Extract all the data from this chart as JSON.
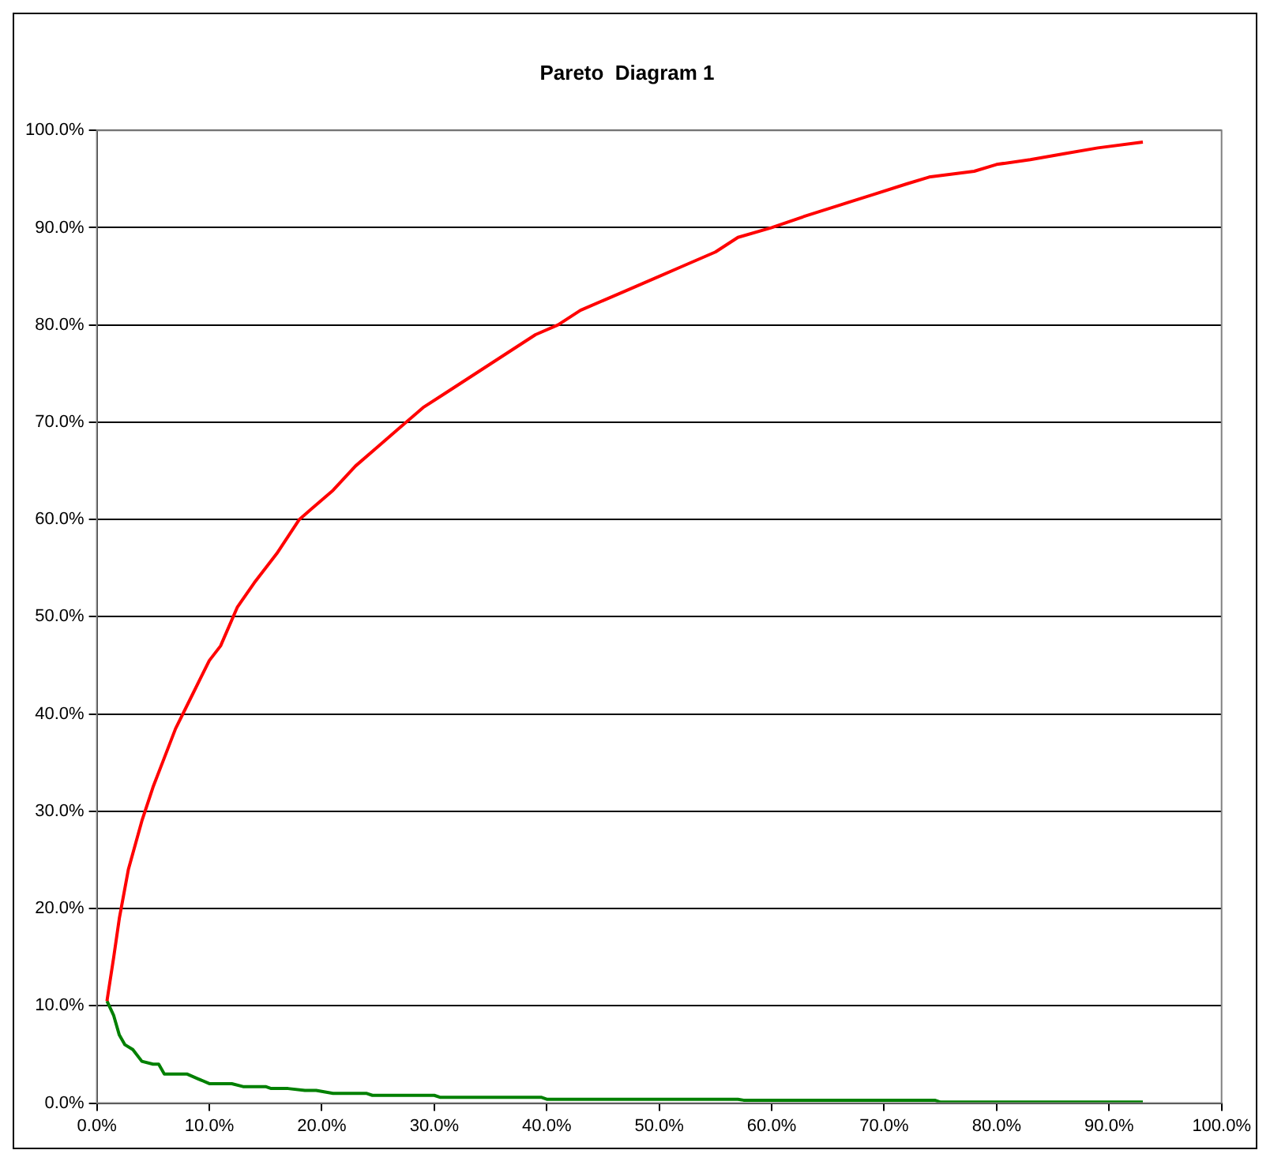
{
  "chart_data": {
    "type": "line",
    "title": "Pareto  Diagram 1",
    "series": [
      {
        "color": "#ff0000",
        "x": [
          0.9,
          1.5,
          2,
          2.8,
          4,
          5,
          6,
          7,
          8.5,
          10,
          11,
          12.5,
          14,
          16,
          18,
          19,
          21,
          23,
          25,
          27,
          29,
          31,
          33,
          35,
          37,
          39,
          41,
          43,
          45,
          47,
          50,
          52,
          55,
          57,
          60,
          63,
          66,
          69,
          72,
          74,
          78,
          80,
          83,
          86,
          89,
          93
        ],
        "values": [
          10.5,
          15,
          19,
          24,
          29,
          32.5,
          35.5,
          38.5,
          42,
          45.5,
          47,
          51,
          53.5,
          56.5,
          60,
          61,
          63,
          65.5,
          67.5,
          69.5,
          71.5,
          73,
          74.5,
          76,
          77.5,
          79,
          80,
          81.5,
          82.5,
          83.5,
          85,
          86,
          87.5,
          89,
          90,
          91.2,
          92.3,
          93.4,
          94.5,
          95.2,
          95.8,
          96.5,
          97,
          97.6,
          98.2,
          98.8
        ]
      },
      {
        "color": "#008000",
        "x": [
          0.9,
          1.5,
          2,
          2.5,
          3.2,
          4,
          5,
          5.5,
          6,
          8,
          9,
          10,
          12,
          13,
          15,
          15.5,
          17,
          18.5,
          19.5,
          21,
          24,
          24.5,
          30,
          30.5,
          39.5,
          40,
          57,
          57.5,
          74.5,
          75,
          93
        ],
        "values": [
          10.5,
          9,
          7,
          6,
          5.5,
          4.3,
          4,
          4,
          3,
          3,
          2.5,
          2,
          2,
          1.7,
          1.7,
          1.5,
          1.5,
          1.3,
          1.3,
          1,
          1,
          0.8,
          0.8,
          0.6,
          0.6,
          0.4,
          0.4,
          0.3,
          0.3,
          0.1,
          0.1
        ]
      }
    ],
    "xlim": [
      0,
      100
    ],
    "ylim": [
      0,
      100
    ],
    "xticks": [
      {
        "value": 0,
        "label": "0.0%"
      },
      {
        "value": 10,
        "label": "10.0%"
      },
      {
        "value": 20,
        "label": "20.0%"
      },
      {
        "value": 30,
        "label": "30.0%"
      },
      {
        "value": 40,
        "label": "40.0%"
      },
      {
        "value": 50,
        "label": "50.0%"
      },
      {
        "value": 60,
        "label": "60.0%"
      },
      {
        "value": 70,
        "label": "70.0%"
      },
      {
        "value": 80,
        "label": "80.0%"
      },
      {
        "value": 90,
        "label": "90.0%"
      },
      {
        "value": 100,
        "label": "100.0%"
      }
    ],
    "yticks": [
      {
        "value": 0,
        "label": "0.0%"
      },
      {
        "value": 10,
        "label": "10.0%"
      },
      {
        "value": 20,
        "label": "20.0%"
      },
      {
        "value": 30,
        "label": "30.0%"
      },
      {
        "value": 40,
        "label": "40.0%"
      },
      {
        "value": 50,
        "label": "50.0%"
      },
      {
        "value": 60,
        "label": "60.0%"
      },
      {
        "value": 70,
        "label": "70.0%"
      },
      {
        "value": 80,
        "label": "80.0%"
      },
      {
        "value": 90,
        "label": "90.0%"
      },
      {
        "value": 100,
        "label": "100.0%"
      }
    ],
    "grid": "y",
    "legend": false,
    "marker": "none",
    "line_style": "solid"
  }
}
